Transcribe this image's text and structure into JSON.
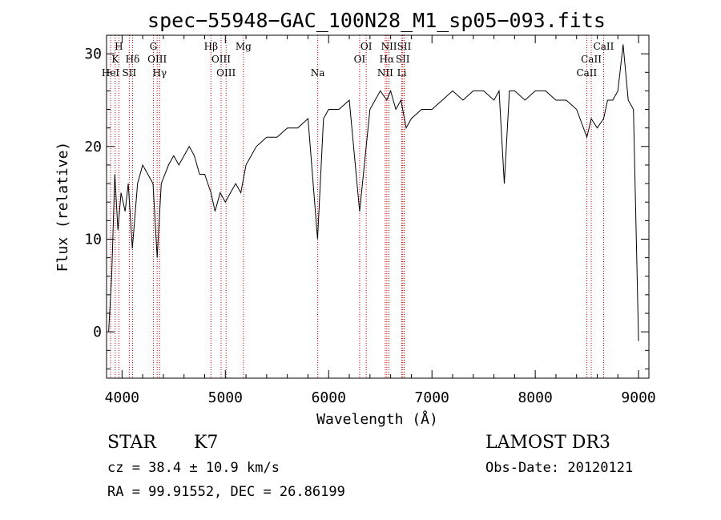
{
  "chart_data": {
    "type": "line",
    "title": "spec−55948−GAC_100N28_M1_sp05−093.fits",
    "xlabel": "Wavelength (Å)",
    "ylabel": "Flux (relative)",
    "xlim": [
      3850,
      9100
    ],
    "ylim": [
      -5,
      32
    ],
    "xticks": [
      4000,
      5000,
      6000,
      7000,
      8000,
      9000
    ],
    "yticks": [
      0,
      10,
      20,
      30
    ],
    "series": [
      {
        "name": "spectrum",
        "x": [
          3870,
          3900,
          3930,
          3960,
          3990,
          4030,
          4060,
          4100,
          4150,
          4200,
          4250,
          4300,
          4340,
          4380,
          4450,
          4500,
          4550,
          4600,
          4650,
          4700,
          4750,
          4800,
          4861,
          4900,
          4950,
          5000,
          5050,
          5100,
          5150,
          5200,
          5300,
          5400,
          5500,
          5600,
          5700,
          5800,
          5893,
          5950,
          6000,
          6100,
          6200,
          6300,
          6400,
          6500,
          6563,
          6600,
          6650,
          6700,
          6750,
          6800,
          6900,
          7000,
          7100,
          7200,
          7300,
          7400,
          7500,
          7600,
          7650,
          7700,
          7750,
          7800,
          7900,
          8000,
          8100,
          8200,
          8300,
          8400,
          8500,
          8542,
          8600,
          8662,
          8700,
          8750,
          8800,
          8850,
          8900,
          8950,
          9000
        ],
        "y": [
          0,
          6,
          17,
          11,
          15,
          13,
          16,
          9,
          16,
          18,
          17,
          16,
          8,
          16,
          18,
          19,
          18,
          19,
          20,
          19,
          17,
          17,
          15,
          13,
          15,
          14,
          15,
          16,
          15,
          18,
          20,
          21,
          21,
          22,
          22,
          23,
          10,
          23,
          24,
          24,
          25,
          13,
          24,
          26,
          25,
          26,
          24,
          25,
          22,
          23,
          24,
          24,
          25,
          26,
          25,
          26,
          26,
          25,
          26,
          16,
          26,
          26,
          25,
          26,
          26,
          25,
          25,
          24,
          21,
          23,
          22,
          23,
          25,
          25,
          26,
          31,
          25,
          24,
          -1
        ]
      }
    ],
    "spectral_lines": [
      {
        "label": "K",
        "wavelength": 3934,
        "row": 2
      },
      {
        "label": "H",
        "wavelength": 3969,
        "row": 1
      },
      {
        "label": "HeI",
        "wavelength": 3889,
        "row": 3
      },
      {
        "label": "SII",
        "wavelength": 4070,
        "row": 3
      },
      {
        "label": "Hδ",
        "wavelength": 4102,
        "row": 2
      },
      {
        "label": "G",
        "wavelength": 4304,
        "row": 1
      },
      {
        "label": "OIII",
        "wavelength": 4340,
        "row": 2
      },
      {
        "label": "Hγ",
        "wavelength": 4364,
        "row": 3
      },
      {
        "label": "Hβ",
        "wavelength": 4861,
        "row": 1
      },
      {
        "label": "OIII",
        "wavelength": 4959,
        "row": 2
      },
      {
        "label": "OIII",
        "wavelength": 5007,
        "row": 3
      },
      {
        "label": "Mg",
        "wavelength": 5175,
        "row": 1
      },
      {
        "label": "Na",
        "wavelength": 5894,
        "row": 3
      },
      {
        "label": "OI",
        "wavelength": 6300,
        "row": 2
      },
      {
        "label": "OI",
        "wavelength": 6364,
        "row": 1
      },
      {
        "label": "NII",
        "wavelength": 6548,
        "row": 3
      },
      {
        "label": "Hα",
        "wavelength": 6563,
        "row": 2
      },
      {
        "label": "NII",
        "wavelength": 6584,
        "row": 1
      },
      {
        "label": "SII",
        "wavelength": 6717,
        "row": 2
      },
      {
        "label": "Li",
        "wavelength": 6708,
        "row": 3
      },
      {
        "label": "SII",
        "wavelength": 6731,
        "row": 1
      },
      {
        "label": "CaII",
        "wavelength": 8498,
        "row": 3
      },
      {
        "label": "CaII",
        "wavelength": 8542,
        "row": 2
      },
      {
        "label": "CaII",
        "wavelength": 8662,
        "row": 1
      }
    ]
  },
  "info": {
    "class": "STAR",
    "subclass": "K7",
    "survey": "LAMOST DR3",
    "cz": "cz = 38.4 ± 10.9 km/s",
    "obs_date": "Obs-Date: 20120121",
    "radec": "RA =  99.91552, DEC =  26.86199"
  },
  "colors": {
    "line": "#000000",
    "marker": "#cc0000"
  }
}
